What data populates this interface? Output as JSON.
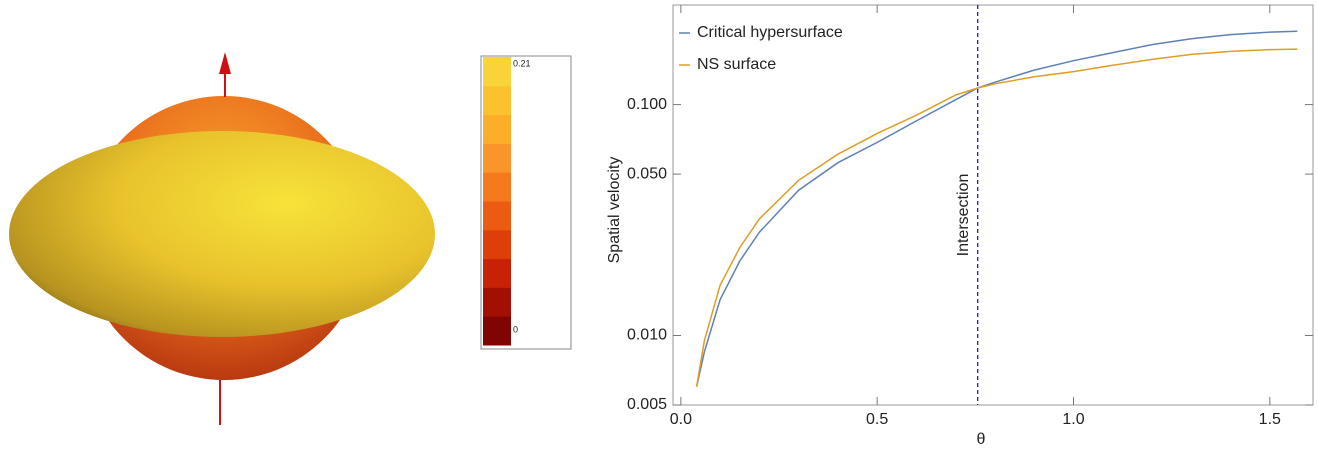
{
  "chart_data": [
    {
      "type": "line",
      "ylabel": "Spatial velocity",
      "xlabel": "θ",
      "log_y": true,
      "xlim": [
        -0.02,
        1.61
      ],
      "ylim": [
        0.005,
        0.27
      ],
      "xticks": [
        {
          "value": 0,
          "label": "0.0"
        },
        0.5,
        {
          "value": 1,
          "label": "1.0"
        },
        1.5
      ],
      "yticks": [
        0.005,
        {
          "value": 0.01,
          "label": "0.010"
        },
        {
          "value": 0.05,
          "label": "0.050"
        },
        {
          "value": 0.1,
          "label": "0.100"
        }
      ],
      "legend": "top-left",
      "x": [
        0.04,
        0.06,
        0.1,
        0.15,
        0.2,
        0.3,
        0.4,
        0.5,
        0.6,
        0.7,
        0.756,
        0.8,
        0.9,
        1.0,
        1.1,
        1.2,
        1.3,
        1.4,
        1.5,
        1.57
      ],
      "series": [
        {
          "name": "Critical hypersurface",
          "color": "#5e81b5",
          "values": [
            0.006,
            0.0085,
            0.0143,
            0.021,
            0.028,
            0.0426,
            0.056,
            0.0686,
            0.085,
            0.105,
            0.118,
            0.125,
            0.141,
            0.155,
            0.168,
            0.182,
            0.193,
            0.201,
            0.206,
            0.208
          ]
        },
        {
          "name": "NS surface",
          "color": "#e19c24",
          "values": [
            0.006,
            0.0095,
            0.0165,
            0.024,
            0.032,
            0.047,
            0.061,
            0.075,
            0.09,
            0.11,
            0.118,
            0.123,
            0.132,
            0.139,
            0.148,
            0.157,
            0.165,
            0.17,
            0.173,
            0.174
          ]
        }
      ],
      "annotations": [
        {
          "x": 0.756,
          "text": "Intersection",
          "color": "#1a1acc"
        }
      ]
    },
    {
      "type": "colorbar",
      "ylim": [
        0,
        0.21
      ],
      "yticks": [
        0,
        0.21
      ],
      "colors": [
        "#800404",
        "#a40f05",
        "#c82106",
        "#de3e08",
        "#ec5b12",
        "#f57a1d",
        "#f9952b",
        "#fbae27",
        "#fbc12f",
        "#f9d33a"
      ]
    }
  ]
}
